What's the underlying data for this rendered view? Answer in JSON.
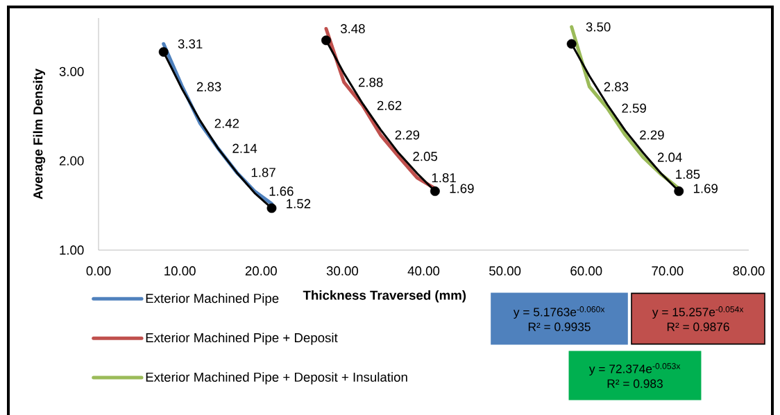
{
  "chart_data": {
    "type": "line",
    "xlabel": "Thickness Traversed (mm)",
    "ylabel": "Average Film Density",
    "xlim": [
      0,
      80
    ],
    "ylim": [
      1,
      3.6
    ],
    "xticks": [
      {
        "value": 0,
        "label": "0.00"
      },
      {
        "value": 10,
        "label": "10.00"
      },
      {
        "value": 20,
        "label": "20.00"
      },
      {
        "value": 30,
        "label": "30.00"
      },
      {
        "value": 40,
        "label": "40.00"
      },
      {
        "value": 50,
        "label": "50.00"
      },
      {
        "value": 60,
        "label": "60.00"
      },
      {
        "value": 70,
        "label": "70.00"
      },
      {
        "value": 80,
        "label": "80.00"
      }
    ],
    "yticks": [
      {
        "value": 1,
        "label": "1.00"
      },
      {
        "value": 2,
        "label": "2.00"
      },
      {
        "value": 3,
        "label": "3.00"
      }
    ],
    "legend": "bottom",
    "series": [
      {
        "name": "Exterior Machined Pipe",
        "color": "#4f81bd",
        "x": [
          8.0,
          10.3,
          12.5,
          14.7,
          17.0,
          19.2,
          21.3
        ],
        "values": [
          3.31,
          2.83,
          2.42,
          2.14,
          1.87,
          1.66,
          1.52
        ],
        "value_labels": [
          "3.31",
          "2.83",
          "2.42",
          "2.14",
          "1.87",
          "1.66",
          "1.52"
        ]
      },
      {
        "name": "Exterior Machined Pipe + Deposit",
        "color": "#c0504d",
        "x": [
          28.0,
          30.2,
          32.5,
          34.7,
          36.9,
          39.2,
          41.4
        ],
        "values": [
          3.48,
          2.88,
          2.62,
          2.29,
          2.05,
          1.81,
          1.69
        ],
        "value_labels": [
          "3.48",
          "2.88",
          "2.62",
          "2.29",
          "2.05",
          "1.81",
          "1.69"
        ]
      },
      {
        "name": "Exterior Machined Pipe + Deposit + Insulation",
        "color": "#9bbb59",
        "x": [
          58.2,
          60.4,
          62.6,
          64.8,
          67.0,
          69.2,
          71.4
        ],
        "values": [
          3.5,
          2.83,
          2.59,
          2.29,
          2.04,
          1.85,
          1.69
        ],
        "value_labels": [
          "3.50",
          "2.83",
          "2.59",
          "2.29",
          "2.04",
          "1.85",
          "1.69"
        ]
      },
      {
        "type": "line",
        "color": "#000000",
        "x": [
          8.0,
          10.3,
          12.5,
          14.7,
          17.0,
          19.2,
          21.3
        ],
        "values": [
          3.22,
          2.8,
          2.45,
          2.14,
          1.87,
          1.64,
          1.47
        ]
      },
      {
        "type": "line",
        "color": "#000000",
        "x": [
          28.0,
          30.2,
          32.5,
          34.7,
          36.9,
          39.2,
          41.4
        ],
        "values": [
          3.35,
          2.98,
          2.64,
          2.35,
          2.09,
          1.86,
          1.66
        ]
      },
      {
        "type": "line",
        "color": "#000000",
        "x": [
          58.2,
          60.4,
          62.6,
          64.8,
          67.0,
          69.2,
          71.4
        ],
        "values": [
          3.31,
          2.95,
          2.63,
          2.34,
          2.09,
          1.86,
          1.66
        ]
      },
      {
        "type": "scatter",
        "color": "#000000",
        "x": [
          8.0,
          21.3,
          28.0,
          41.4,
          58.2,
          71.4
        ],
        "values": [
          3.22,
          1.47,
          3.35,
          1.66,
          3.31,
          1.66
        ]
      }
    ],
    "annotations": [
      "y = 5.1763e$^{-0.060x}$",
      "R² = 0.9935",
      "y = 15.257e$^{-0.054x}$",
      "R² = 0.9876",
      "y = 72.374e$^{-0.053x}$",
      "R² = 0.983"
    ]
  }
}
